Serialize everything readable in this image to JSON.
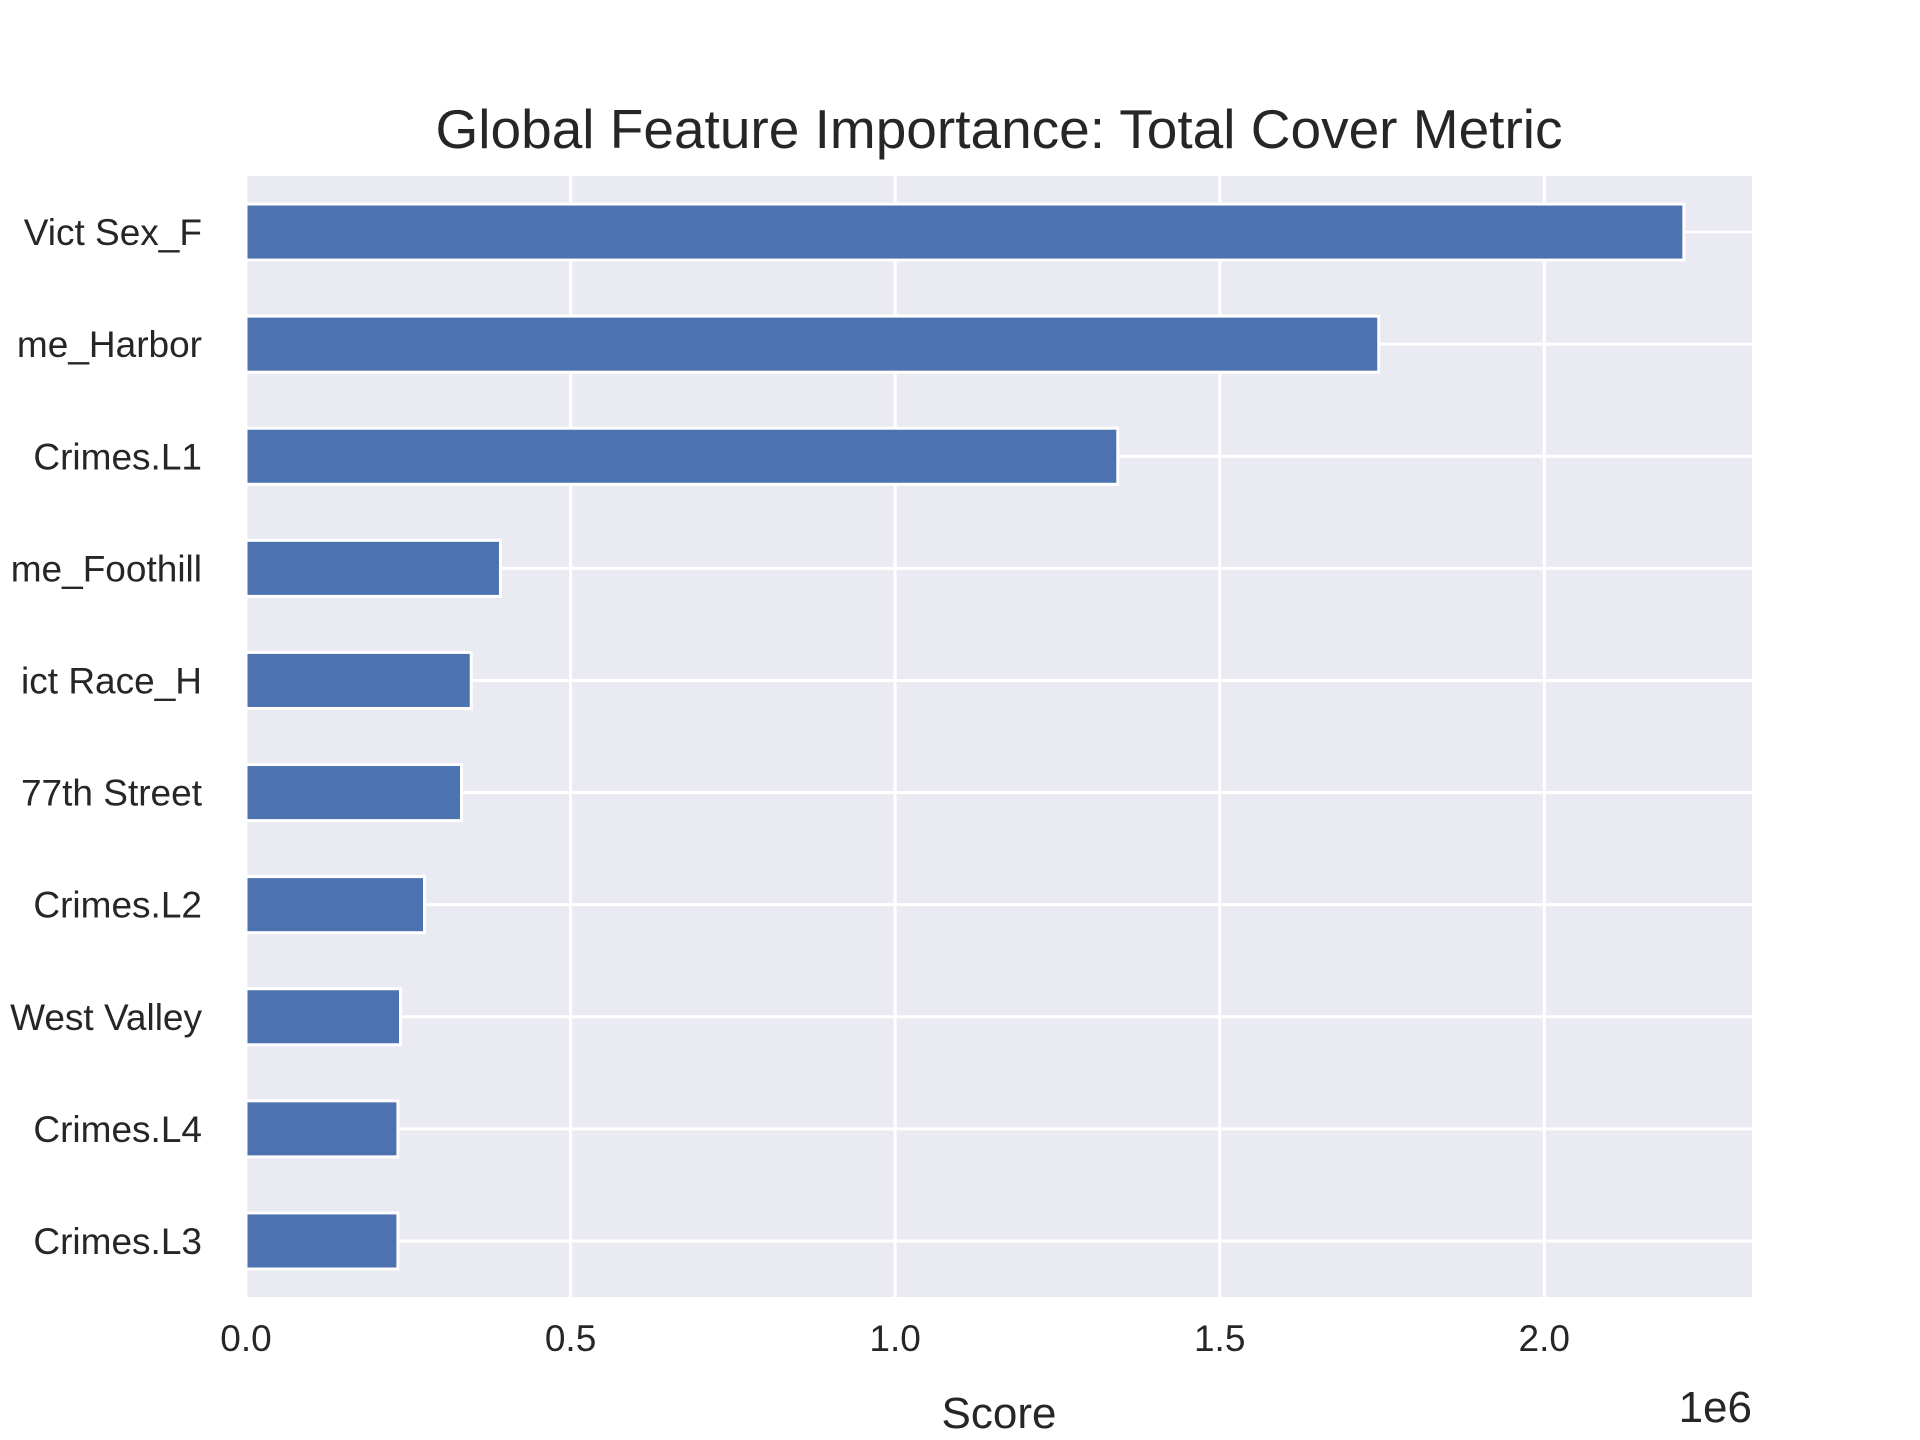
{
  "chart_data": {
    "type": "bar",
    "orientation": "horizontal",
    "title": "Global Feature Importance: Total Cover Metric",
    "xlabel": "Score",
    "ylabel": "",
    "x_scale_label": "1e6",
    "xlim": [
      0,
      2.32
    ],
    "x_ticks": [
      0.0,
      0.5,
      1.0,
      1.5,
      2.0
    ],
    "x_tick_labels": [
      "0.0",
      "0.5",
      "1.0",
      "1.5",
      "2.0"
    ],
    "categories": [
      "Vict Sex_F",
      "me_Harbor",
      "Crimes.L1",
      "me_Foothill",
      "ict Race_H",
      "77th Street",
      "Crimes.L2",
      "West Valley",
      "Crimes.L4",
      "Crimes.L3"
    ],
    "values": [
      2.215,
      1.745,
      1.343,
      0.392,
      0.347,
      0.332,
      0.275,
      0.238,
      0.234,
      0.234
    ],
    "grid": true,
    "legend": "none",
    "colors": {
      "bar": "#4c72b0",
      "bar_edge": "#ffffff",
      "plot_background": "#eaeaf2",
      "grid": "#ffffff",
      "text": "#262626"
    }
  }
}
